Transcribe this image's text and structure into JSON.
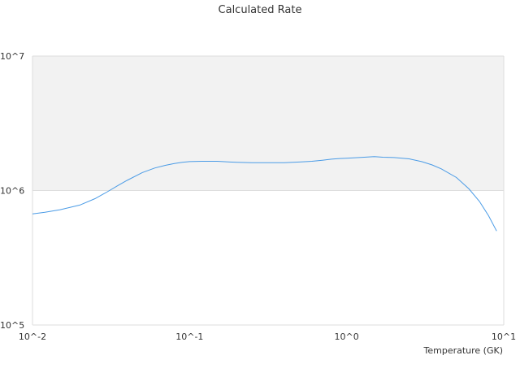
{
  "chart_data": {
    "type": "line",
    "title": "Calculated Rate",
    "xlabel": "Temperature (GK)",
    "ylabel": "",
    "xscale": "log",
    "yscale": "log",
    "xlim": [
      0.01,
      10
    ],
    "ylim": [
      100000,
      10000000
    ],
    "x_tick_labels": [
      "10^-2",
      "10^-1",
      "10^0",
      "10^1"
    ],
    "y_tick_labels": [
      "10^5",
      "10^6",
      "10^7"
    ],
    "grid": true,
    "shaded_band": [
      1000000,
      10000000
    ],
    "colors": {
      "series": "#4a9be6",
      "band": "#f2f2f2",
      "grid": "#dddddd",
      "text": "#333333"
    },
    "series": [
      {
        "x": [
          0.01,
          0.012,
          0.015,
          0.02,
          0.025,
          0.03,
          0.035,
          0.04,
          0.05,
          0.06,
          0.07,
          0.08,
          0.09,
          0.1,
          0.12,
          0.15,
          0.18,
          0.2,
          0.25,
          0.3,
          0.4,
          0.5,
          0.6,
          0.7,
          0.8,
          0.9,
          1.0,
          1.2,
          1.5,
          1.7,
          2.0,
          2.5,
          3.0,
          3.5,
          4.0,
          5.0,
          6.0,
          7.0,
          8.0,
          9.0
        ],
        "values": [
          670000,
          690000,
          720000,
          780000,
          870000,
          980000,
          1090000,
          1190000,
          1360000,
          1470000,
          1540000,
          1590000,
          1620000,
          1640000,
          1650000,
          1650000,
          1630000,
          1620000,
          1610000,
          1610000,
          1610000,
          1630000,
          1650000,
          1680000,
          1710000,
          1730000,
          1740000,
          1760000,
          1790000,
          1770000,
          1760000,
          1720000,
          1640000,
          1550000,
          1450000,
          1250000,
          1030000,
          830000,
          650000,
          500000
        ]
      }
    ]
  }
}
